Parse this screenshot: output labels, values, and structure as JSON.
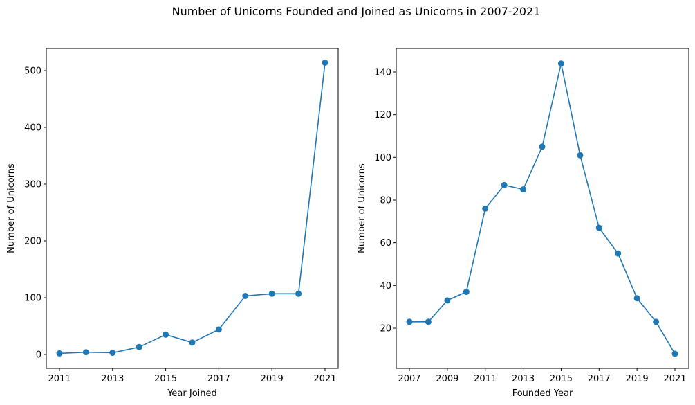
{
  "figure": {
    "title": "Number of Unicorns Founded and Joined as Unicorns in 2007-2021"
  },
  "colors": {
    "series": "#1f77b4",
    "axis": "#000000",
    "background": "#ffffff"
  },
  "chart_data": [
    {
      "type": "line",
      "title": "",
      "xlabel": "Year Joined",
      "ylabel": "Number of Unicorns",
      "xlim": [
        2011,
        2021
      ],
      "ylim": [
        0,
        500
      ],
      "grid": false,
      "markers": true,
      "xticks": [
        2011,
        2013,
        2015,
        2017,
        2019,
        2021
      ],
      "yticks": [
        0,
        100,
        200,
        300,
        400,
        500
      ],
      "x": [
        2011,
        2012,
        2013,
        2014,
        2015,
        2016,
        2017,
        2018,
        2019,
        2020,
        2021
      ],
      "series": [
        {
          "values": [
            2,
            4,
            3,
            13,
            35,
            21,
            44,
            103,
            107,
            107,
            514
          ]
        }
      ]
    },
    {
      "type": "line",
      "title": "",
      "xlabel": "Founded Year",
      "ylabel": "Number of Unicorns",
      "xlim": [
        2007,
        2021
      ],
      "ylim": [
        20,
        140
      ],
      "grid": false,
      "markers": true,
      "xticks": [
        2007,
        2009,
        2011,
        2013,
        2015,
        2017,
        2019,
        2021
      ],
      "yticks": [
        20,
        40,
        60,
        80,
        100,
        120,
        140
      ],
      "x": [
        2007,
        2008,
        2009,
        2010,
        2011,
        2012,
        2013,
        2014,
        2015,
        2016,
        2017,
        2018,
        2019,
        2020,
        2021
      ],
      "series": [
        {
          "values": [
            23,
            23,
            33,
            37,
            76,
            87,
            85,
            105,
            144,
            101,
            67,
            55,
            34,
            23,
            8
          ]
        }
      ]
    }
  ]
}
